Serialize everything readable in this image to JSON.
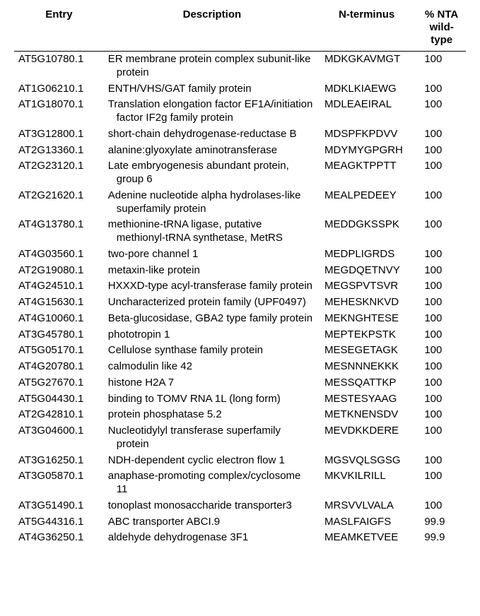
{
  "table": {
    "columns": {
      "entry": "Entry",
      "description": "Description",
      "nterminus": "N-terminus",
      "pct": "% NTA wild-type"
    },
    "rows": [
      {
        "entry": "AT5G10780.1",
        "desc": "ER membrane protein complex subunit-like protein",
        "nterm": "MDKGKAVMGT",
        "pct": "100"
      },
      {
        "entry": "AT1G06210.1",
        "desc": "ENTH/VHS/GAT family protein",
        "nterm": "MDKLKIAEWG",
        "pct": "100"
      },
      {
        "entry": "AT1G18070.1",
        "desc": "Translation elongation factor EF1A/initiation factor IF2g family protein",
        "nterm": "MDLEAEIRAL",
        "pct": "100"
      },
      {
        "entry": "AT3G12800.1",
        "desc": "short-chain dehydrogenase-reductase B",
        "nterm": "MDSPFKPDVV",
        "pct": "100"
      },
      {
        "entry": "AT2G13360.1",
        "desc": "alanine:glyoxylate aminotransferase",
        "nterm": "MDYMYGPGRH",
        "pct": "100"
      },
      {
        "entry": "AT2G23120.1",
        "desc": "Late embryogenesis abundant protein, group 6",
        "nterm": "MEAGKTPPTT",
        "pct": "100"
      },
      {
        "entry": "AT2G21620.1",
        "desc": "Adenine nucleotide alpha hydrolases-like superfamily protein",
        "nterm": "MEALPEDEEY",
        "pct": "100"
      },
      {
        "entry": "AT4G13780.1",
        "desc": "methionine-tRNA ligase, putative methionyl-tRNA synthetase, MetRS",
        "nterm": "MEDDGKSSPK",
        "pct": "100"
      },
      {
        "entry": "AT4G03560.1",
        "desc": "two-pore channel 1",
        "nterm": "MEDPLIGRDS",
        "pct": "100"
      },
      {
        "entry": "AT2G19080.1",
        "desc": "metaxin-like protein",
        "nterm": "MEGDQETNVY",
        "pct": "100"
      },
      {
        "entry": "AT4G24510.1",
        "desc": "HXXXD-type acyl-transferase family protein",
        "nterm": "MEGSPVTSVR",
        "pct": "100"
      },
      {
        "entry": "AT4G15630.1",
        "desc": "Uncharacterized protein family (UPF0497)",
        "nterm": "MEHESKNKVD",
        "pct": "100"
      },
      {
        "entry": "AT4G10060.1",
        "desc": "Beta-glucosidase, GBA2 type family protein",
        "nterm": "MEKNGHTESE",
        "pct": "100"
      },
      {
        "entry": "AT3G45780.1",
        "desc": "phototropin 1",
        "nterm": "MEPTEKPSTK",
        "pct": "100"
      },
      {
        "entry": "AT5G05170.1",
        "desc": "Cellulose synthase family protein",
        "nterm": "MESEGETAGK",
        "pct": "100"
      },
      {
        "entry": "AT4G20780.1",
        "desc": "calmodulin like 42",
        "nterm": "MESNNNEKKK",
        "pct": "100"
      },
      {
        "entry": "AT5G27670.1",
        "desc": "histone H2A 7",
        "nterm": "MESSQATTKP",
        "pct": "100"
      },
      {
        "entry": "AT5G04430.1",
        "desc": "binding to TOMV RNA 1L (long form)",
        "nterm": "MESTESYAAG",
        "pct": "100"
      },
      {
        "entry": "AT2G42810.1",
        "desc": "protein phosphatase 5.2",
        "nterm": "METKNENSDV",
        "pct": "100"
      },
      {
        "entry": "AT3G04600.1",
        "desc": "Nucleotidylyl transferase superfamily protein",
        "nterm": "MEVDKKDERE",
        "pct": "100"
      },
      {
        "entry": "AT3G16250.1",
        "desc": "NDH-dependent cyclic electron flow 1",
        "nterm": "MGSVQLSGSG",
        "pct": "100"
      },
      {
        "entry": "AT3G05870.1",
        "desc": "anaphase-promoting complex/cyclosome 11",
        "nterm": "MKVKILRILL",
        "pct": "100"
      },
      {
        "entry": "AT3G51490.1",
        "desc": "tonoplast monosaccharide transporter3",
        "nterm": "MRSVVLVALA",
        "pct": "100"
      },
      {
        "entry": "AT5G44316.1",
        "desc": "ABC transporter ABCI.9",
        "nterm": "MASLFAIGFS",
        "pct": "99.9"
      },
      {
        "entry": "AT4G36250.1",
        "desc": "aldehyde dehydrogenase 3F1",
        "nterm": "MEAMKETVEE",
        "pct": "99.9"
      }
    ],
    "header_fontsize": 15,
    "body_fontsize": 15,
    "text_color": "#000000",
    "background_color": "#ffffff",
    "border_color": "#000000",
    "col_widths": {
      "entry": 120,
      "desc": 290,
      "nterm": 130,
      "pct": 65
    }
  }
}
